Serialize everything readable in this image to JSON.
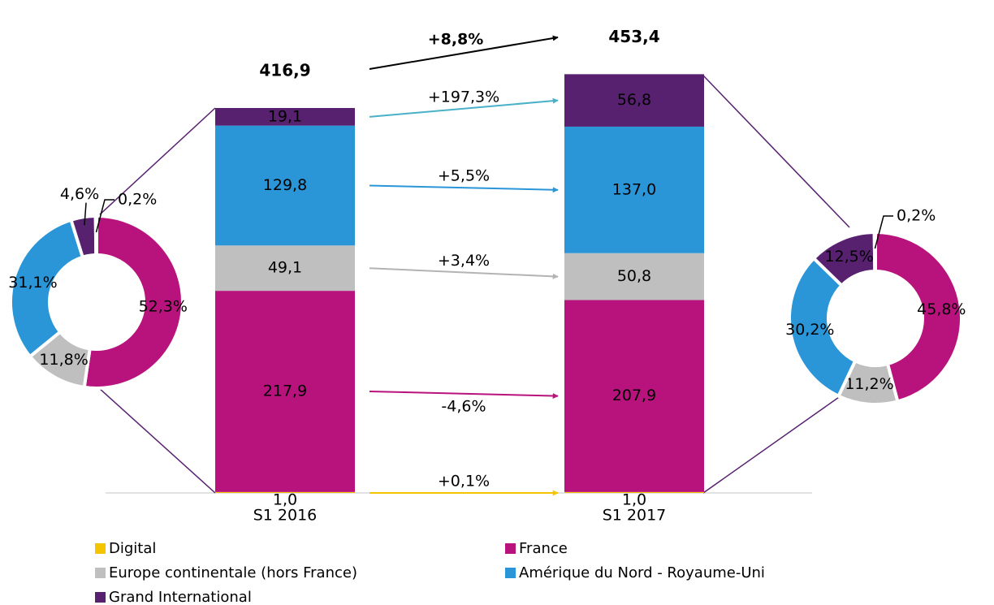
{
  "chart_data": [
    {
      "type": "pie",
      "values": [
        52.3,
        11.8,
        31.1,
        4.6,
        0.2
      ],
      "value_labels": [
        "52,3%",
        "11,8%",
        "31,1%",
        "4,6%",
        "0,2%"
      ],
      "colors": [
        "#b8127c",
        "#bfbfbf",
        "#2a96d8",
        "#572170",
        "#f5c400"
      ]
    },
    {
      "type": "bar",
      "stacked": true,
      "legend": "bottom",
      "categories": [
        "S1 2016",
        "S1 2017"
      ],
      "ylim": [
        0,
        500
      ],
      "totals": [
        416.9,
        453.4
      ],
      "total_labels": [
        "416,9",
        "453,4"
      ],
      "total_growth": 8.8,
      "total_growth_label": "+8,8%",
      "series": [
        {
          "name": "Digital",
          "color": "#f5c400",
          "values": [
            1.0,
            1.0
          ],
          "value_labels": [
            "1,0",
            "1,0"
          ],
          "growth": 0.1,
          "growth_label": "+0,1%",
          "arrow_color": "#f5c400"
        },
        {
          "name": "France",
          "color": "#b8127c",
          "values": [
            217.9,
            207.9
          ],
          "value_labels": [
            "217,9",
            "207,9"
          ],
          "growth": -4.6,
          "growth_label": "-4,6%",
          "arrow_color": "#b8127c"
        },
        {
          "name": "Europe continentale (hors France)",
          "color": "#bfbfbf",
          "values": [
            49.1,
            50.8
          ],
          "value_labels": [
            "49,1",
            "50,8"
          ],
          "growth": 3.4,
          "growth_label": "+3,4%",
          "arrow_color": "#b3b3b3"
        },
        {
          "name": "Amérique du Nord - Royaume-Uni",
          "color": "#2a96d8",
          "values": [
            129.8,
            137.0
          ],
          "value_labels": [
            "129,8",
            "137,0"
          ],
          "growth": 5.5,
          "growth_label": "+5,5%",
          "arrow_color": "#2a96d8"
        },
        {
          "name": "Grand International",
          "color": "#572170",
          "values": [
            19.1,
            56.8
          ],
          "value_labels": [
            "19,1",
            "56,8"
          ],
          "growth": 197.3,
          "growth_label": "+197,3%",
          "arrow_color": "#4ab0c8"
        }
      ]
    },
    {
      "type": "pie",
      "values": [
        45.8,
        11.2,
        30.2,
        12.5,
        0.2
      ],
      "value_labels": [
        "45,8%",
        "11,2%",
        "30,2%",
        "12,5%",
        "0,2%"
      ],
      "colors": [
        "#b8127c",
        "#bfbfbf",
        "#2a96d8",
        "#572170",
        "#f5c400"
      ]
    }
  ]
}
